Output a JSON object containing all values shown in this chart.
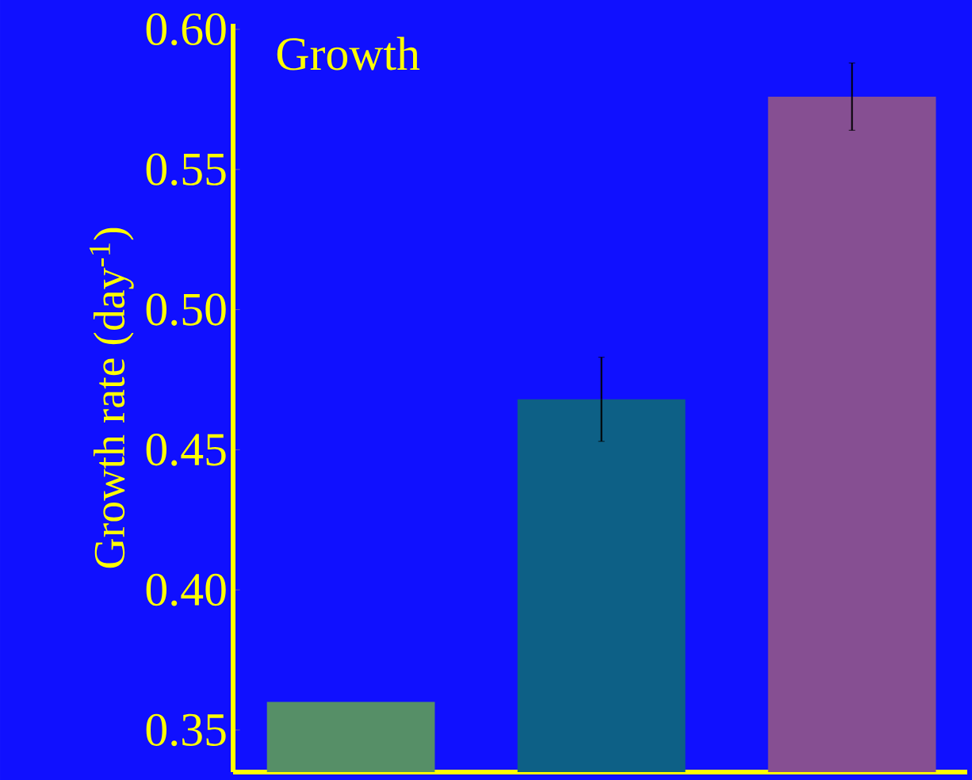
{
  "chart_data": {
    "type": "bar",
    "title": "Growth",
    "ylabel": "Growth rate (day$^{-1}$)",
    "categories": [
      null,
      null,
      null
    ],
    "values": [
      0.36,
      0.468,
      0.576
    ],
    "colors": [
      "#568f67",
      "#0d6086",
      "#864f92"
    ],
    "errors": [
      null,
      0.015,
      0.012
    ],
    "ylim": [
      0.335,
      0.602
    ],
    "yticks": [
      0.35,
      {
        "value": 0.4,
        "label": "0.40"
      },
      0.45,
      {
        "value": 0.5,
        "label": "0.50"
      },
      0.55,
      {
        "value": 0.6,
        "label": "0.60"
      }
    ],
    "grid": false
  }
}
